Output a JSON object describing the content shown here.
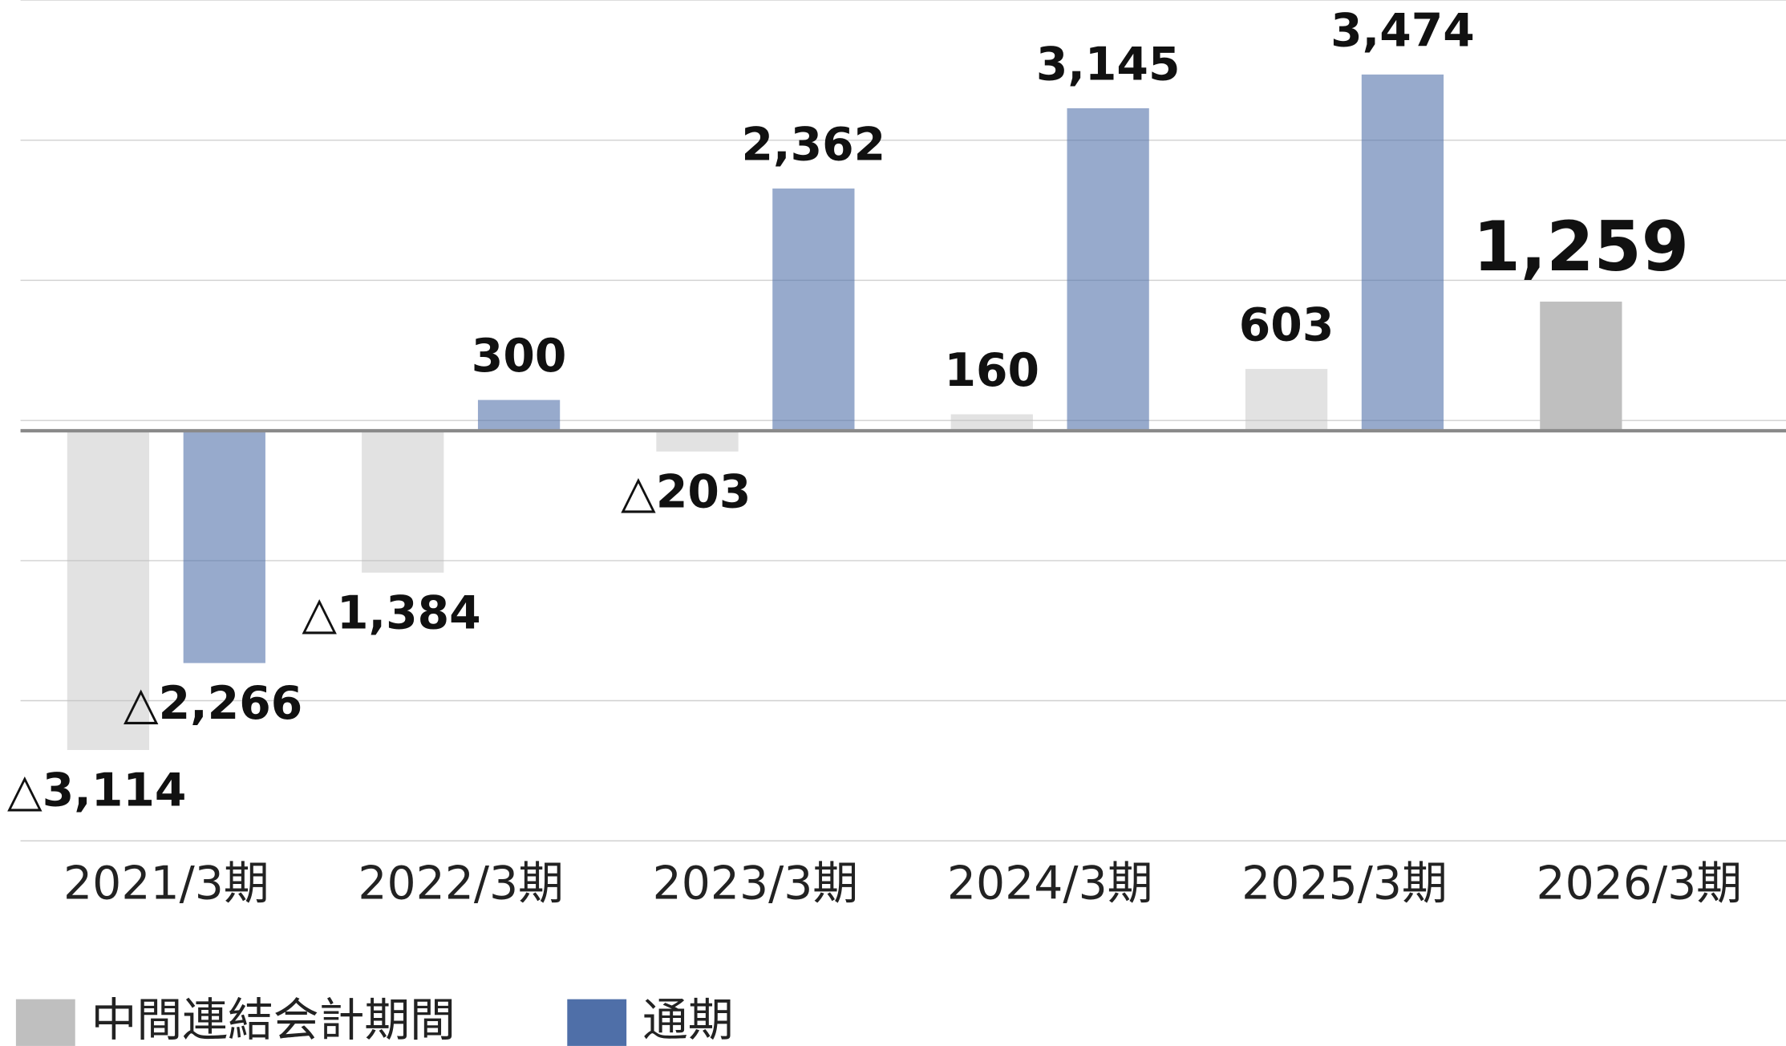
{
  "chart_data": {
    "type": "bar",
    "categories": [
      "2021/3期",
      "2022/3期",
      "2023/3期",
      "2024/3期",
      "2025/3期",
      "2026/3期"
    ],
    "series": [
      {
        "name": "中間連結会計期間",
        "color": "#bfbfbf",
        "values": [
          -3114,
          -1384,
          -203,
          160,
          603,
          1259
        ],
        "value_labels": [
          "△3,114",
          "△1,384",
          "△203",
          "160",
          "603",
          "1,259"
        ]
      },
      {
        "name": "通期",
        "color": "#4f6fa8",
        "values": [
          -2266,
          300,
          2362,
          3145,
          3474,
          null
        ],
        "value_labels": [
          "△2,266",
          "300",
          "2,362",
          "3,145",
          "3,474",
          null
        ]
      }
    ],
    "ylim": [
      -4000,
      4200
    ],
    "yticks": [
      -4000,
      -2633,
      -1267,
      100,
      1467,
      2833,
      4200
    ],
    "grid": true
  }
}
